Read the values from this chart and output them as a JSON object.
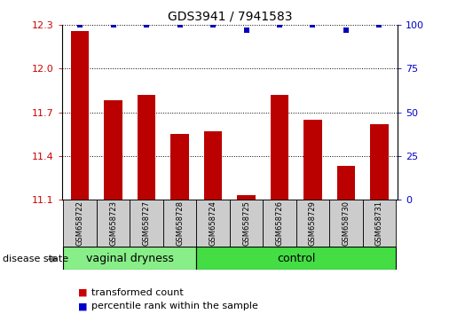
{
  "title": "GDS3941 / 7941583",
  "samples": [
    "GSM658722",
    "GSM658723",
    "GSM658727",
    "GSM658728",
    "GSM658724",
    "GSM658725",
    "GSM658726",
    "GSM658729",
    "GSM658730",
    "GSM658731"
  ],
  "bar_values": [
    12.26,
    11.78,
    11.82,
    11.55,
    11.57,
    11.13,
    11.82,
    11.65,
    11.33,
    11.62
  ],
  "dot_values": [
    100,
    100,
    100,
    100,
    100,
    97,
    100,
    100,
    97,
    100
  ],
  "groups": [
    {
      "label": "vaginal dryness",
      "start": 0,
      "end": 4
    },
    {
      "label": "control",
      "start": 4,
      "end": 10
    }
  ],
  "ylim_left": [
    11.1,
    12.3
  ],
  "ylim_right": [
    0,
    100
  ],
  "yticks_left": [
    11.1,
    11.4,
    11.7,
    12.0,
    12.3
  ],
  "yticks_right": [
    0,
    25,
    50,
    75,
    100
  ],
  "bar_color": "#bb0000",
  "dot_color": "#0000bb",
  "group_colors_vag": "#88ee88",
  "group_colors_ctrl": "#44dd44",
  "tick_label_color_left": "#cc0000",
  "tick_label_color_right": "#0000cc",
  "grid_color": "#000000",
  "sample_box_color": "#cccccc",
  "legend_items": [
    {
      "label": "transformed count",
      "color": "#cc0000"
    },
    {
      "label": "percentile rank within the sample",
      "color": "#0000cc"
    }
  ],
  "disease_state_label": "disease state",
  "bar_bottom": 11.1,
  "title_fontsize": 10,
  "tick_fontsize": 8,
  "sample_fontsize": 6,
  "group_fontsize": 9,
  "legend_fontsize": 8
}
